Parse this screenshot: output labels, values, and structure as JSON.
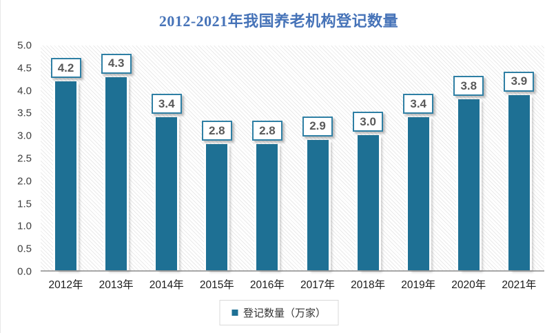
{
  "title": "2012-2021年我国养老机构登记数量",
  "legend": {
    "label": "登记数量（万家）"
  },
  "colors": {
    "title": "#4673B8",
    "bar": "#1E7094",
    "box_border": "#2E7FA4",
    "label_text": "#595959",
    "axis_line": "#A6A6A6",
    "tick_text": "#3D3D3D",
    "xlabel_text": "#1A1A1A",
    "legend_border": "#D9D9D9"
  },
  "chart_data": {
    "type": "bar",
    "title": "2012-2021年我国养老机构登记数量",
    "categories": [
      "2012年",
      "2013年",
      "2014年",
      "2015年",
      "2016年",
      "2017年",
      "2018年",
      "2019年",
      "2020年",
      "2021年"
    ],
    "values": [
      4.2,
      4.3,
      3.4,
      2.8,
      2.8,
      2.9,
      3.0,
      3.4,
      3.8,
      3.9
    ],
    "value_labels": [
      "4.2",
      "4.3",
      "3.4",
      "2.8",
      "2.8",
      "2.9",
      "3.0",
      "3.4",
      "3.8",
      "3.9"
    ],
    "xlabel": "",
    "ylabel": "",
    "ylim": [
      0,
      5
    ],
    "ytick_step": 0.5,
    "yticks": [
      "5.0",
      "4.5",
      "4.0",
      "3.5",
      "3.0",
      "2.5",
      "2.0",
      "1.5",
      "1.0",
      "0.5",
      "0.0"
    ],
    "legend": [
      "登记数量（万家）"
    ],
    "legend_position": "bottom",
    "grid": false,
    "plot_background": "diagonal-hatch",
    "data_labels": "boxed-above-bars"
  }
}
